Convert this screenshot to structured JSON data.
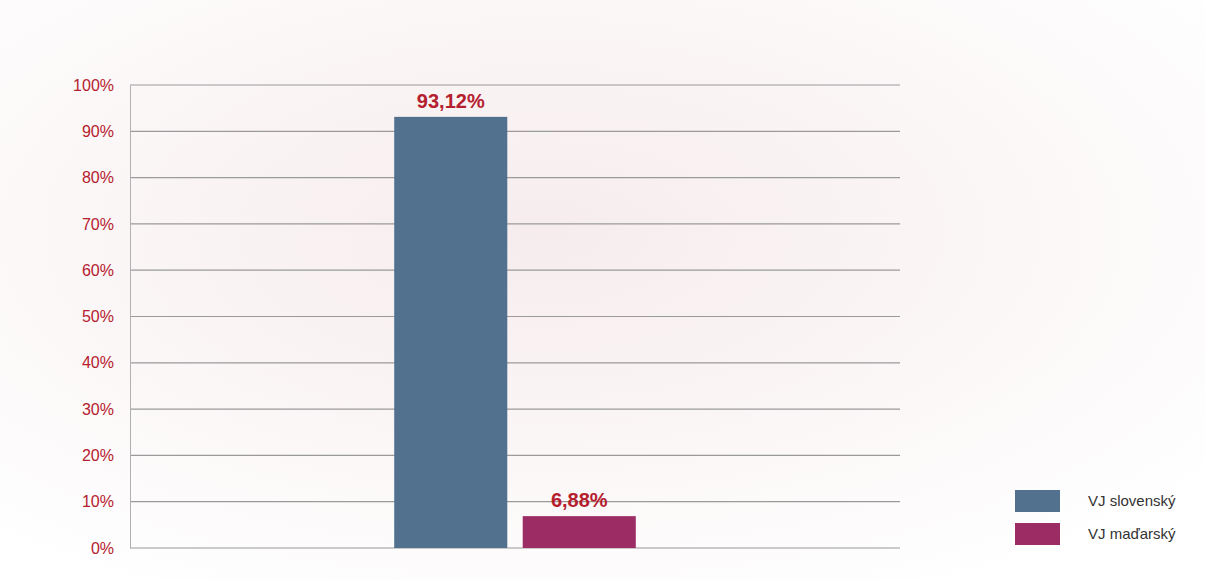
{
  "chart_data": {
    "type": "bar",
    "categories": [
      null
    ],
    "series": [
      {
        "name": "VJ slovenský",
        "color": "#51718f",
        "values": [
          93.12
        ],
        "value_labels": [
          "93,12%"
        ]
      },
      {
        "name": "VJ maďarský",
        "color": "#9b2d64",
        "values": [
          6.88
        ],
        "value_labels": [
          "6,88%"
        ]
      }
    ],
    "ylim": [
      0,
      100
    ],
    "yticks": [
      {
        "value": 0,
        "label": "0%"
      },
      {
        "value": 10,
        "label": "10%"
      },
      {
        "value": 20,
        "label": "20%"
      },
      {
        "value": 30,
        "label": "30%"
      },
      {
        "value": 40,
        "label": "40%"
      },
      {
        "value": 50,
        "label": "50%"
      },
      {
        "value": 60,
        "label": "60%"
      },
      {
        "value": 70,
        "label": "70%"
      },
      {
        "value": 80,
        "label": "80%"
      },
      {
        "value": 90,
        "label": "90%"
      },
      {
        "value": 100,
        "label": "100%"
      }
    ],
    "grid": true,
    "data_labels": true,
    "legend": "right"
  }
}
